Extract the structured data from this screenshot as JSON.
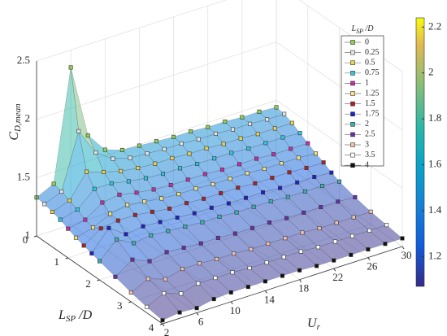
{
  "chart_data": {
    "type": "surface3d",
    "xlabel": {
      "base": "U",
      "sub": "r"
    },
    "ylabel": {
      "base": "L",
      "sub": "SP",
      "tail": " /D"
    },
    "zlabel": {
      "base": "C",
      "sub": "D,mean"
    },
    "legend_title": {
      "base": "L",
      "sub": "SP",
      "tail": " /D"
    },
    "x": [
      2,
      4,
      6,
      8,
      10,
      12,
      14,
      16,
      18,
      20,
      22,
      24,
      26,
      28,
      30
    ],
    "xlim": [
      2,
      30
    ],
    "xticks": [
      2,
      6,
      10,
      14,
      18,
      22,
      26,
      30
    ],
    "ylim": [
      0,
      4
    ],
    "yticks": [
      0,
      1,
      2,
      3,
      4
    ],
    "zlim": [
      1,
      2.5
    ],
    "zticks": [
      1,
      1.5,
      2,
      2.5
    ],
    "clim": [
      1.07,
      2.24
    ],
    "cticks": [
      1.2,
      1.4,
      1.6,
      1.8,
      2,
      2.2
    ],
    "colormap": "parula",
    "grid": true,
    "legend": "top-right",
    "series": [
      {
        "name": "0",
        "color": "#8fd14f",
        "values": [
          1.33,
          1.4,
          2.35,
          1.72,
          1.55,
          1.5,
          1.49,
          1.48,
          1.47,
          1.47,
          1.46,
          1.46,
          1.45,
          1.45,
          1.44
        ]
      },
      {
        "name": "0.25",
        "color": "#e6e6e6",
        "values": [
          1.32,
          1.38,
          1.85,
          1.62,
          1.52,
          1.48,
          1.47,
          1.46,
          1.46,
          1.45,
          1.45,
          1.44,
          1.44,
          1.43,
          1.43
        ]
      },
      {
        "name": "0.5",
        "color": "#e8d44d",
        "values": [
          1.3,
          1.35,
          1.55,
          1.5,
          1.46,
          1.44,
          1.43,
          1.43,
          1.42,
          1.42,
          1.41,
          1.41,
          1.4,
          1.4,
          1.4
        ]
      },
      {
        "name": "0.75",
        "color": "#2ec7e0",
        "values": [
          1.28,
          1.32,
          1.45,
          1.45,
          1.42,
          1.4,
          1.39,
          1.39,
          1.38,
          1.38,
          1.38,
          1.37,
          1.37,
          1.37,
          1.36
        ]
      },
      {
        "name": "1",
        "color": "#cc2aa8",
        "values": [
          1.25,
          1.28,
          1.38,
          1.4,
          1.37,
          1.35,
          1.34,
          1.34,
          1.34,
          1.33,
          1.33,
          1.33,
          1.32,
          1.32,
          1.32
        ]
      },
      {
        "name": "1.25",
        "color": "#f5e27a",
        "values": [
          1.22,
          1.26,
          1.33,
          1.36,
          1.34,
          1.32,
          1.31,
          1.31,
          1.3,
          1.3,
          1.3,
          1.29,
          1.29,
          1.29,
          1.28
        ]
      },
      {
        "name": "1.5",
        "color": "#b01f24",
        "values": [
          1.2,
          1.3,
          1.32,
          1.32,
          1.3,
          1.28,
          1.28,
          1.27,
          1.27,
          1.27,
          1.26,
          1.26,
          1.26,
          1.25,
          1.25
        ]
      },
      {
        "name": "1.75",
        "color": "#2020c8",
        "values": [
          1.18,
          1.35,
          1.25,
          1.27,
          1.26,
          1.25,
          1.24,
          1.24,
          1.23,
          1.23,
          1.23,
          1.22,
          1.22,
          1.22,
          1.21
        ]
      },
      {
        "name": "2",
        "color": "#3ab0b0",
        "values": [
          1.16,
          1.3,
          1.22,
          1.24,
          1.23,
          1.22,
          1.21,
          1.21,
          1.2,
          1.2,
          1.2,
          1.19,
          1.19,
          1.19,
          1.18
        ]
      },
      {
        "name": "2.5",
        "color": "#6a2ea8",
        "values": [
          1.12,
          1.22,
          1.16,
          1.19,
          1.18,
          1.17,
          1.17,
          1.16,
          1.16,
          1.16,
          1.15,
          1.15,
          1.15,
          1.15,
          1.14
        ]
      },
      {
        "name": "3",
        "color": "#f0c0b0",
        "values": [
          1.08,
          1.15,
          1.1,
          1.14,
          1.14,
          1.13,
          1.13,
          1.12,
          1.12,
          1.12,
          1.12,
          1.11,
          1.11,
          1.11,
          1.11
        ]
      },
      {
        "name": "3.5",
        "color": "#ffffff",
        "values": [
          1.05,
          1.12,
          1.07,
          1.11,
          1.11,
          1.11,
          1.1,
          1.1,
          1.1,
          1.1,
          1.09,
          1.09,
          1.09,
          1.09,
          1.09
        ]
      },
      {
        "name": "4",
        "color": "#111111",
        "values": [
          1.03,
          1.05,
          1.04,
          1.07,
          1.08,
          1.08,
          1.08,
          1.08,
          1.08,
          1.07,
          1.07,
          1.07,
          1.07,
          1.07,
          1.07
        ]
      }
    ]
  }
}
